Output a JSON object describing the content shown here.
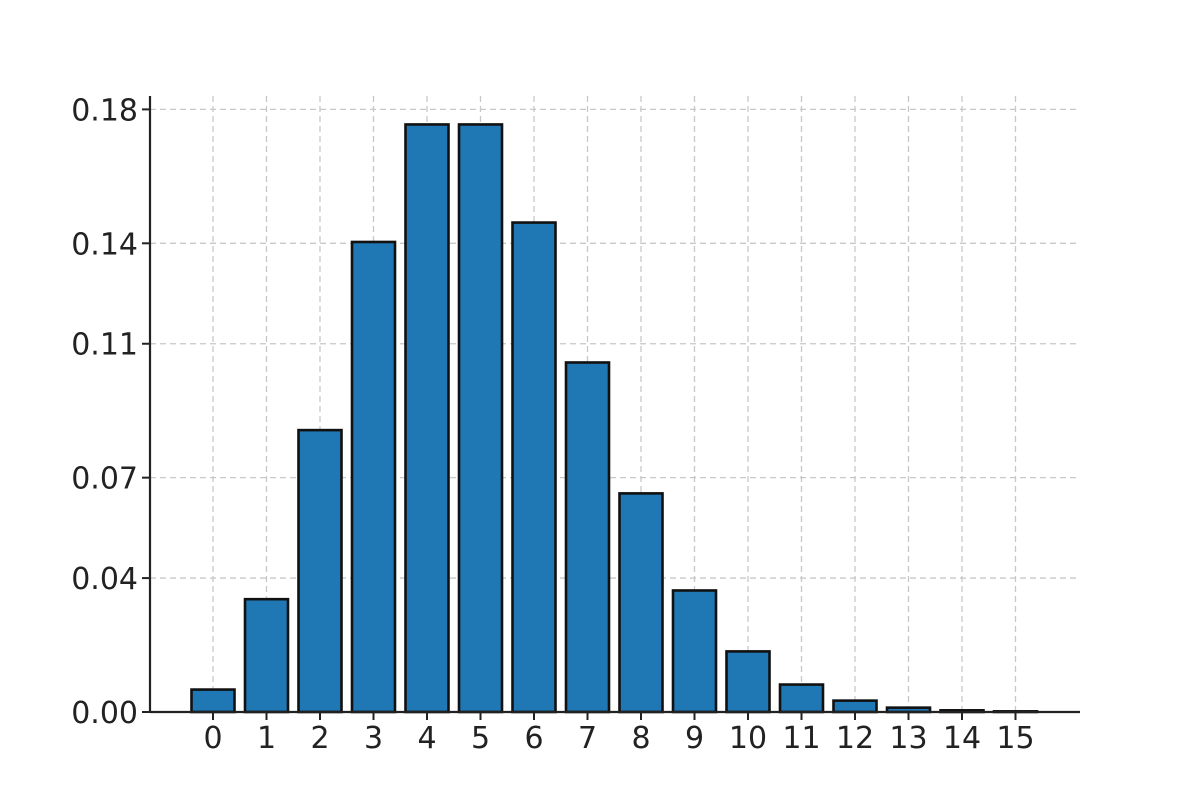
{
  "chart_data": {
    "type": "bar",
    "title": "",
    "xlabel": "",
    "ylabel": "",
    "categories": [
      "0",
      "1",
      "2",
      "3",
      "4",
      "5",
      "6",
      "7",
      "8",
      "9",
      "10",
      "11",
      "12",
      "13",
      "14",
      "15"
    ],
    "values": [
      0.0067,
      0.0337,
      0.0842,
      0.1404,
      0.1755,
      0.1755,
      0.1462,
      0.1044,
      0.0653,
      0.0363,
      0.0181,
      0.0082,
      0.0034,
      0.0013,
      0.0005,
      0.0002
    ],
    "ylim": [
      0,
      0.184
    ],
    "yticks": [
      0.0,
      0.04,
      0.07,
      0.11,
      0.14,
      0.18
    ],
    "ytick_labels": [
      "0.00",
      "0.04",
      "0.07",
      "0.11",
      "0.14",
      "0.18"
    ],
    "grid": true,
    "bar_color": "#1f77b4",
    "edge_color": "#111111"
  }
}
